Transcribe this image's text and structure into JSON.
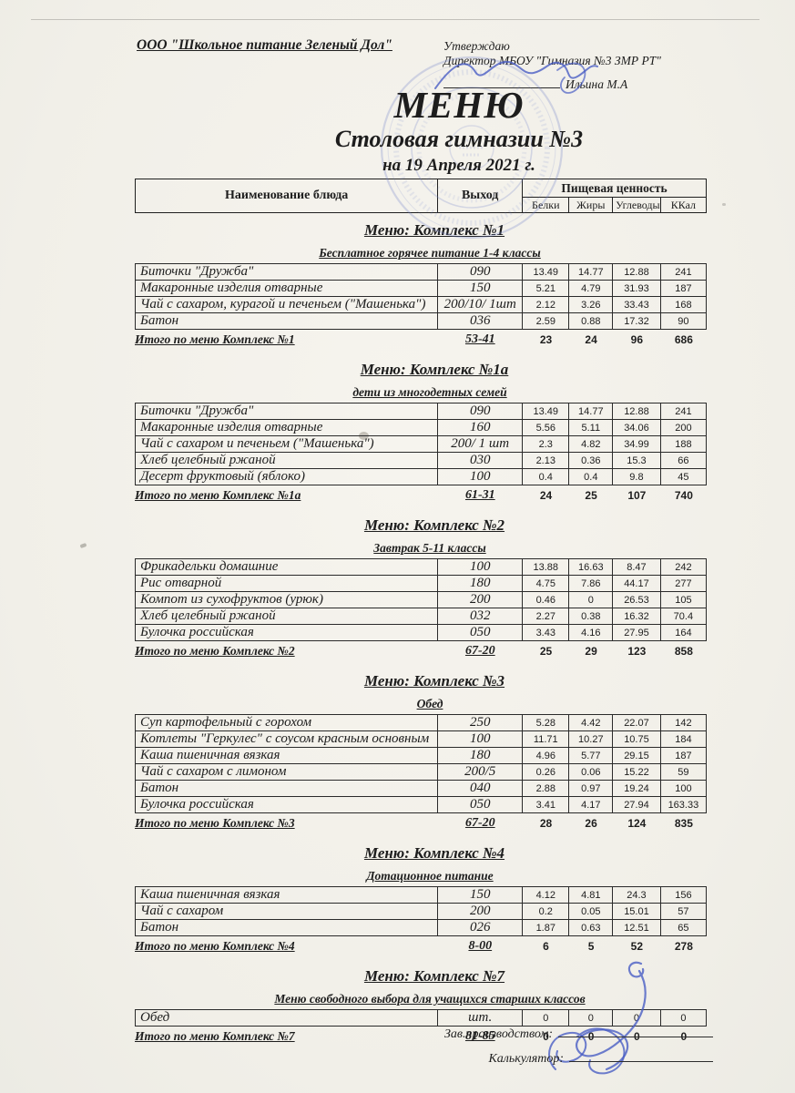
{
  "header": {
    "org_name": "ООО \"Школьное питание Зеленый Дол\"",
    "approve": {
      "line1": "Утверждаю",
      "line2": "Директор МБОУ \"Гимназия №3 ЗМР РТ\"",
      "signer": "Ильина М.А"
    },
    "title": "МЕНЮ",
    "subtitle": "Столовая гимназии №3",
    "date_line": "на 19 Апреля 2021 г."
  },
  "table_header": {
    "name": "Наименование блюда",
    "out": "Выход",
    "nutrition": "Пищевая ценность",
    "cols": [
      "Белки",
      "Жиры",
      "Углеводы",
      "ККал"
    ]
  },
  "sections": [
    {
      "menu_title": "Меню: Комплекс №1",
      "subtitle": "Бесплатное горячее питание  1-4 классы",
      "rows": [
        {
          "name": "Биточки  \"Дружба\"",
          "out": "090",
          "protein": "13.49",
          "fat": "14.77",
          "carbs": "12.88",
          "kcal": "241"
        },
        {
          "name": "Макаронные изделия отварные",
          "out": "150",
          "protein": "5.21",
          "fat": "4.79",
          "carbs": "31.93",
          "kcal": "187"
        },
        {
          "name": "Чай с сахаром, курагой и печеньем (\"Машенька\")",
          "out": "200/10/ 1шт",
          "protein": "2.12",
          "fat": "3.26",
          "carbs": "33.43",
          "kcal": "168"
        },
        {
          "name": "Батон",
          "out": "036",
          "protein": "2.59",
          "fat": "0.88",
          "carbs": "17.32",
          "kcal": "90"
        }
      ],
      "total": {
        "label": "Итого по меню Комплекс №1",
        "out": "53-41",
        "protein": "23",
        "fat": "24",
        "carbs": "96",
        "kcal": "686"
      }
    },
    {
      "menu_title": "Меню: Комплекс №1а",
      "subtitle": "дети из многодетных семей",
      "rows": [
        {
          "name": "Биточки  \"Дружба\"",
          "out": "090",
          "protein": "13.49",
          "fat": "14.77",
          "carbs": "12.88",
          "kcal": "241"
        },
        {
          "name": "Макаронные изделия отварные",
          "out": "160",
          "protein": "5.56",
          "fat": "5.11",
          "carbs": "34.06",
          "kcal": "200"
        },
        {
          "name": "Чай с сахаром и печеньем (\"Машенька\")",
          "out": "200/ 1 шт",
          "protein": "2.3",
          "fat": "4.82",
          "carbs": "34.99",
          "kcal": "188"
        },
        {
          "name": "Хлеб  целебный ржаной",
          "out": "030",
          "protein": "2.13",
          "fat": "0.36",
          "carbs": "15.3",
          "kcal": "66"
        },
        {
          "name": "Десерт фруктовый (яблоко)",
          "out": "100",
          "protein": "0.4",
          "fat": "0.4",
          "carbs": "9.8",
          "kcal": "45"
        }
      ],
      "total": {
        "label": "Итого по меню Комплекс №1а",
        "out": "61-31",
        "protein": "24",
        "fat": "25",
        "carbs": "107",
        "kcal": "740"
      }
    },
    {
      "menu_title": "Меню: Комплекс №2",
      "subtitle": "Завтрак 5-11 классы",
      "rows": [
        {
          "name": "Фрикадельки домашние",
          "out": "100",
          "protein": "13.88",
          "fat": "16.63",
          "carbs": "8.47",
          "kcal": "242"
        },
        {
          "name": "Рис отварной",
          "out": "180",
          "protein": "4.75",
          "fat": "7.86",
          "carbs": "44.17",
          "kcal": "277"
        },
        {
          "name": "Компот из сухофруктов (урюк)",
          "out": "200",
          "protein": "0.46",
          "fat": "0",
          "carbs": "26.53",
          "kcal": "105"
        },
        {
          "name": "Хлеб  целебный ржаной",
          "out": "032",
          "protein": "2.27",
          "fat": "0.38",
          "carbs": "16.32",
          "kcal": "70.4"
        },
        {
          "name": "Булочка российская",
          "out": "050",
          "protein": "3.43",
          "fat": "4.16",
          "carbs": "27.95",
          "kcal": "164"
        }
      ],
      "total": {
        "label": "Итого по меню Комплекс №2",
        "out": "67-20",
        "protein": "25",
        "fat": "29",
        "carbs": "123",
        "kcal": "858"
      }
    },
    {
      "menu_title": "Меню: Комплекс №3",
      "subtitle": "Обед",
      "rows": [
        {
          "name": "Суп картофельный с горохом",
          "out": "250",
          "protein": "5.28",
          "fat": "4.42",
          "carbs": "22.07",
          "kcal": "142"
        },
        {
          "name": "Котлеты  \"Геркулес\" с соусом красным основным",
          "out": "100",
          "protein": "11.71",
          "fat": "10.27",
          "carbs": "10.75",
          "kcal": "184"
        },
        {
          "name": "Каша пшеничная вязкая",
          "out": "180",
          "protein": "4.96",
          "fat": "5.77",
          "carbs": "29.15",
          "kcal": "187"
        },
        {
          "name": "Чай с сахаром с лимоном",
          "out": "200/5",
          "protein": "0.26",
          "fat": "0.06",
          "carbs": "15.22",
          "kcal": "59"
        },
        {
          "name": "Батон",
          "out": "040",
          "protein": "2.88",
          "fat": "0.97",
          "carbs": "19.24",
          "kcal": "100"
        },
        {
          "name": "Булочка российская",
          "out": "050",
          "protein": "3.41",
          "fat": "4.17",
          "carbs": "27.94",
          "kcal": "163.33"
        }
      ],
      "total": {
        "label": "Итого по меню Комплекс №3",
        "out": "67-20",
        "protein": "28",
        "fat": "26",
        "carbs": "124",
        "kcal": "835"
      }
    },
    {
      "menu_title": "Меню: Комплекс №4",
      "subtitle": "Дотационное питание",
      "rows": [
        {
          "name": "Каша пшеничная вязкая",
          "out": "150",
          "protein": "4.12",
          "fat": "4.81",
          "carbs": "24.3",
          "kcal": "156"
        },
        {
          "name": "Чай с сахаром",
          "out": "200",
          "protein": "0.2",
          "fat": "0.05",
          "carbs": "15.01",
          "kcal": "57"
        },
        {
          "name": "Батон",
          "out": "026",
          "protein": "1.87",
          "fat": "0.63",
          "carbs": "12.51",
          "kcal": "65"
        }
      ],
      "total": {
        "label": "Итого по меню Комплекс №4",
        "out": "8-00",
        "protein": "6",
        "fat": "5",
        "carbs": "52",
        "kcal": "278"
      }
    },
    {
      "menu_title": "Меню: Комплекс №7",
      "subtitle": "Меню свободного выбора для учащихся старших классов",
      "rows": [
        {
          "name": "Обед",
          "out": "шт.",
          "protein": "0",
          "fat": "0",
          "carbs": "0",
          "kcal": "0"
        }
      ],
      "total": {
        "label": "Итого по меню Комплекс №7",
        "out": "81-85",
        "protein": "0",
        "fat": "0",
        "carbs": "0",
        "kcal": "0"
      }
    }
  ],
  "footer": {
    "manager_label": "Зав.производством:",
    "calculator_label": "Калькулятор:"
  }
}
